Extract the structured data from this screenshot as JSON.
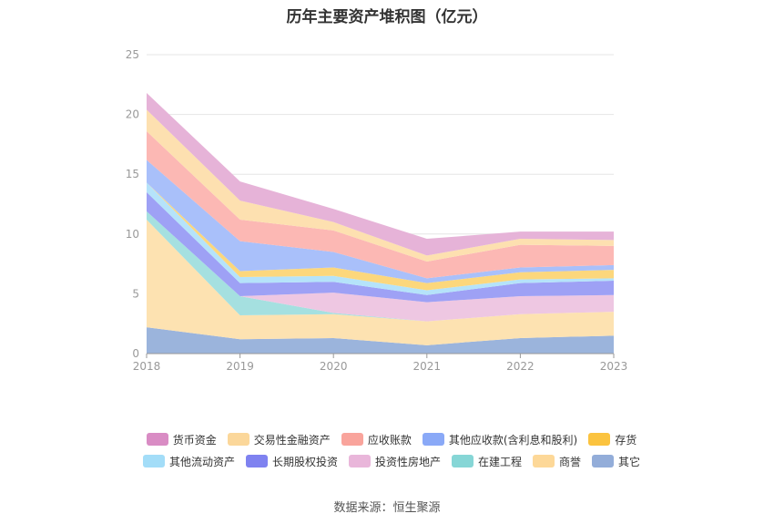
{
  "chart_data": {
    "type": "area",
    "stacked": true,
    "title": "历年主要资产堆积图（亿元）",
    "xlabel": "",
    "ylabel": "",
    "ylim": [
      0,
      25
    ],
    "yticks": [
      0,
      5,
      10,
      15,
      20,
      25
    ],
    "categories": [
      "2018",
      "2019",
      "2020",
      "2021",
      "2022",
      "2023"
    ],
    "series": [
      {
        "name": "其它",
        "color": "#9bb4dc",
        "values": [
          2.2,
          1.2,
          1.3,
          0.7,
          1.3,
          1.5
        ]
      },
      {
        "name": "商誉",
        "color": "#fde2b1",
        "values": [
          9.0,
          2.0,
          2.0,
          2.0,
          2.0,
          2.0
        ]
      },
      {
        "name": "在建工程",
        "color": "#a5e0e0",
        "values": [
          0.7,
          1.6,
          0.1,
          0.0,
          0.0,
          0.0
        ]
      },
      {
        "name": "投资性房地产",
        "color": "#eec7e2",
        "values": [
          0.0,
          0.0,
          1.7,
          1.6,
          1.5,
          1.4
        ]
      },
      {
        "name": "长期股权投资",
        "color": "#9ea1f5",
        "values": [
          1.6,
          1.1,
          0.9,
          0.6,
          1.1,
          1.2
        ]
      },
      {
        "name": "其他流动资产",
        "color": "#b5e3fa",
        "values": [
          0.8,
          0.5,
          0.5,
          0.4,
          0.3,
          0.2
        ]
      },
      {
        "name": "存货",
        "color": "#fcd77c",
        "values": [
          0.0,
          0.5,
          0.7,
          0.6,
          0.6,
          0.7
        ]
      },
      {
        "name": "其他应收款(含利息和股利)",
        "color": "#a9c0fa",
        "values": [
          1.9,
          2.5,
          1.3,
          0.4,
          0.4,
          0.4
        ]
      },
      {
        "name": "应收账款",
        "color": "#fcb8b4",
        "values": [
          2.4,
          1.8,
          1.8,
          1.4,
          1.9,
          1.6
        ]
      },
      {
        "name": "交易性金融资产",
        "color": "#fde0b0",
        "values": [
          1.8,
          1.6,
          0.7,
          0.5,
          0.5,
          0.5
        ]
      },
      {
        "name": "货币资金",
        "color": "#e6b3d8",
        "values": [
          1.4,
          1.6,
          1.1,
          1.4,
          0.6,
          0.7
        ]
      }
    ]
  },
  "legend": [
    {
      "name": "货币资金",
      "color": "#d98cc4"
    },
    {
      "name": "交易性金融资产",
      "color": "#fbd79a"
    },
    {
      "name": "应收账款",
      "color": "#f9a49c"
    },
    {
      "name": "其他应收款(含利息和股利)",
      "color": "#8aa9f7"
    },
    {
      "name": "存货",
      "color": "#fbc33f"
    },
    {
      "name": "其他流动资产",
      "color": "#a3ddf8"
    },
    {
      "name": "长期股权投资",
      "color": "#7f82f0"
    },
    {
      "name": "投资性房地产",
      "color": "#e9b6da"
    },
    {
      "name": "在建工程",
      "color": "#86d6d6"
    },
    {
      "name": "商誉",
      "color": "#fdd898"
    },
    {
      "name": "其它",
      "color": "#93add9"
    }
  ],
  "source": "数据来源：恒生聚源"
}
